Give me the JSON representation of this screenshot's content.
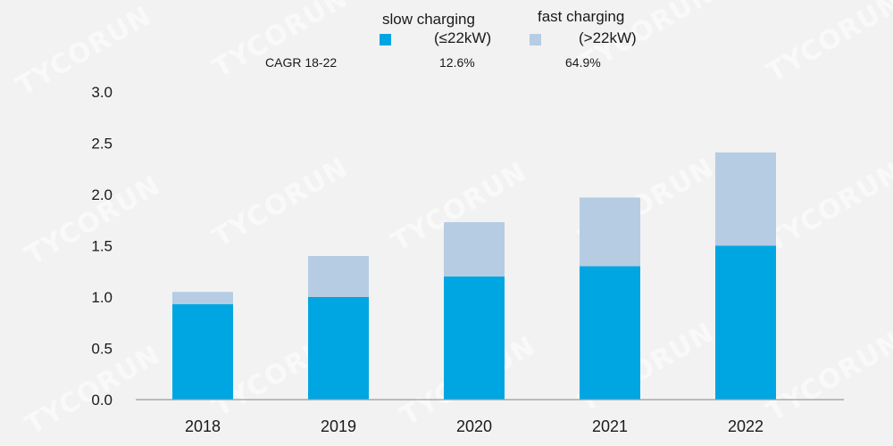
{
  "watermark": "TYCORUN",
  "legend": {
    "slow": {
      "line1": "slow charging",
      "line2": "(≤22kW)"
    },
    "fast": {
      "line1": "fast charging",
      "line2": "(>22kW)"
    }
  },
  "cagr": {
    "label": "CAGR 18-22",
    "slow": "12.6%",
    "fast": "64.9%"
  },
  "colors": {
    "slow": "#00a6e1",
    "fast": "#b6cce3",
    "axis": "#9a9a9a"
  },
  "chart_data": {
    "type": "bar",
    "stacked": true,
    "categories": [
      "2018",
      "2019",
      "2020",
      "2021",
      "2022"
    ],
    "series": [
      {
        "name": "slow charging (≤22kW)",
        "values": [
          0.93,
          1.0,
          1.2,
          1.3,
          1.5
        ]
      },
      {
        "name": "fast charging (>22kW)",
        "values": [
          0.12,
          0.4,
          0.53,
          0.67,
          0.91
        ]
      }
    ],
    "yticks": [
      "0.0",
      "0.5",
      "1.0",
      "1.5",
      "2.0",
      "2.5",
      "3.0"
    ],
    "ylim": [
      0,
      3.0
    ],
    "grid": false,
    "legend_position": "top"
  }
}
